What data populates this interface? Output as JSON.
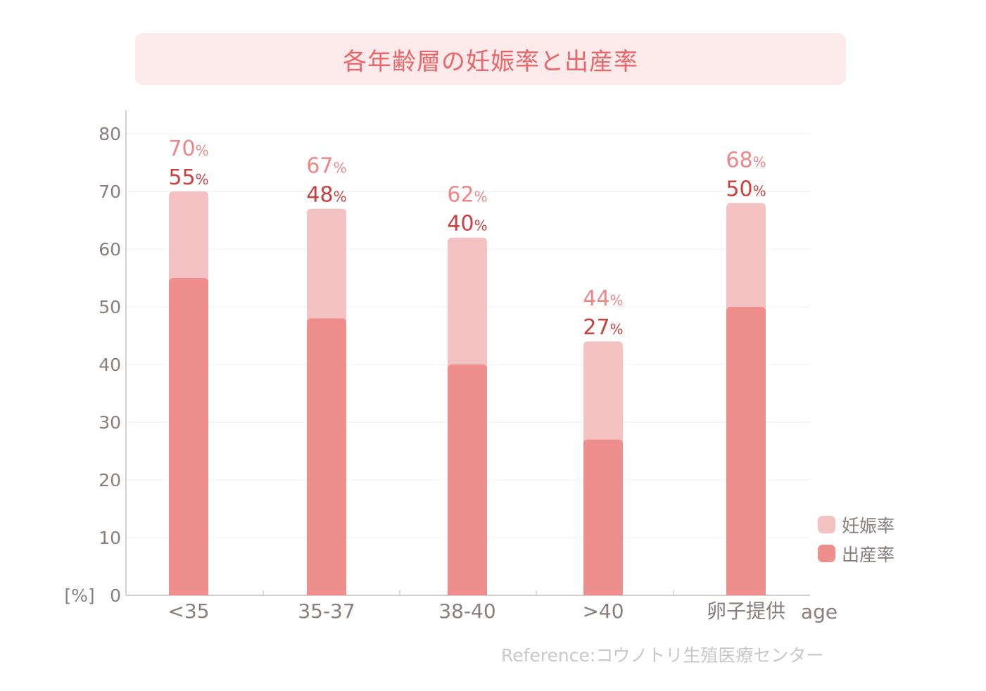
{
  "title": "各年齢層の妊娠率と出産率",
  "reference": "Reference:コウノトリ生殖医療センター",
  "colors": {
    "title_bg": "#fdeaea",
    "title_text": "#e8676b",
    "pregnancy_bar": "#f5c2c3",
    "birth_bar": "#ee8f8e",
    "pregnancy_label": "#ed8687",
    "birth_label": "#c9413f",
    "axis_text": "#8a7d7d"
  },
  "chart_data": {
    "type": "bar",
    "categories": [
      "<35",
      "35-37",
      "38-40",
      ">40",
      "卵子提供"
    ],
    "x_unit_label": "age",
    "y_unit_label": "[%]",
    "ylim": [
      0,
      80
    ],
    "yticks": [
      0,
      10,
      20,
      30,
      40,
      50,
      60,
      70,
      80
    ],
    "grid": true,
    "legend_position": "right",
    "percent_sign": "%",
    "series": [
      {
        "name": "妊娠率",
        "values": [
          70,
          67,
          62,
          44,
          68
        ],
        "labels": [
          "70",
          "67",
          "62",
          "44",
          "68"
        ]
      },
      {
        "name": "出産率",
        "values": [
          55,
          48,
          40,
          27,
          50
        ],
        "labels": [
          "55",
          "48",
          "40",
          "27",
          "50"
        ]
      }
    ]
  }
}
